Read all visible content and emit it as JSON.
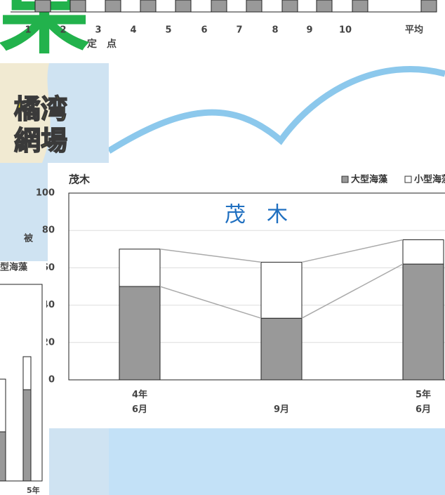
{
  "chart_data": {
    "type": "bar",
    "stacked": true,
    "label": "茂木",
    "title": "茂　木",
    "categories": [
      "4年\n6月",
      "9月",
      "5年\n6月"
    ],
    "series": [
      {
        "name": "大型海藻",
        "color": "#999999",
        "values": [
          50,
          33,
          62
        ]
      },
      {
        "name": "小型海藻",
        "color": "#ffffff",
        "values": [
          20,
          30,
          13
        ]
      }
    ],
    "ylim": [
      0,
      100
    ],
    "yticks": [
      0,
      20,
      40,
      60,
      80,
      100
    ],
    "grid": true
  },
  "background": {
    "top_axis_labels": [
      "1",
      "2",
      "3",
      "4",
      "5",
      "6",
      "7",
      "8",
      "9",
      "10",
      "平均"
    ],
    "top_axis_title": "定　点",
    "big_char": "果",
    "map_labels": [
      "橘湾",
      "網場"
    ],
    "left_chart_labels": [
      "被",
      "型海藻",
      "5年"
    ]
  }
}
